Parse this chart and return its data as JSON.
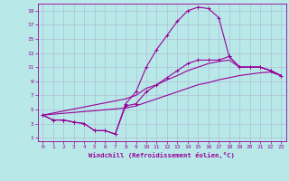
{
  "title": "Windchill (Refroidissement éolien,°C)",
  "bg_color": "#b8e8e8",
  "line_color": "#990099",
  "grid_color": "#aaaacc",
  "xlim": [
    -0.5,
    23.5
  ],
  "ylim": [
    0.5,
    20.0
  ],
  "xticks": [
    0,
    1,
    2,
    3,
    4,
    5,
    6,
    7,
    8,
    9,
    10,
    11,
    12,
    13,
    14,
    15,
    16,
    17,
    18,
    19,
    20,
    21,
    22,
    23
  ],
  "yticks": [
    1,
    3,
    5,
    7,
    9,
    11,
    13,
    15,
    17,
    19
  ],
  "line1_x": [
    0,
    1,
    2,
    3,
    4,
    5,
    6,
    7,
    8,
    9,
    10,
    11,
    12,
    13,
    14,
    15,
    16,
    17,
    18,
    19,
    20,
    21,
    22,
    23
  ],
  "line1_y": [
    4.2,
    3.5,
    3.5,
    3.2,
    3.0,
    2.0,
    2.0,
    1.5,
    5.8,
    7.5,
    11.0,
    13.5,
    15.5,
    17.5,
    19.0,
    19.5,
    19.3,
    18.0,
    12.5,
    11.0,
    11.0,
    11.0,
    10.5,
    9.8
  ],
  "line2_x": [
    0,
    1,
    2,
    3,
    4,
    5,
    6,
    7,
    8,
    9,
    10,
    11,
    12,
    13,
    14,
    15,
    16,
    17,
    18,
    19,
    20,
    21,
    22,
    23
  ],
  "line2_y": [
    4.2,
    3.5,
    3.5,
    3.2,
    3.0,
    2.0,
    2.0,
    1.5,
    5.5,
    5.8,
    7.5,
    8.5,
    9.5,
    10.5,
    11.5,
    12.0,
    12.0,
    12.0,
    12.5,
    11.0,
    11.0,
    11.0,
    10.5,
    9.8
  ],
  "line3_x": [
    0,
    8,
    9,
    10,
    11,
    12,
    13,
    14,
    15,
    16,
    17,
    18,
    19,
    20,
    21,
    22,
    23
  ],
  "line3_y": [
    4.2,
    6.5,
    7.0,
    8.0,
    8.5,
    9.2,
    9.8,
    10.5,
    11.0,
    11.5,
    11.8,
    12.0,
    11.0,
    11.0,
    11.0,
    10.5,
    9.8
  ],
  "line4_x": [
    0,
    8,
    9,
    10,
    11,
    12,
    13,
    14,
    15,
    16,
    17,
    18,
    19,
    20,
    21,
    22,
    23
  ],
  "line4_y": [
    4.2,
    5.2,
    5.5,
    6.0,
    6.5,
    7.0,
    7.5,
    8.0,
    8.5,
    8.8,
    9.2,
    9.5,
    9.8,
    10.0,
    10.2,
    10.3,
    9.8
  ],
  "marker": "+",
  "markersize": 3,
  "linewidth": 0.8
}
